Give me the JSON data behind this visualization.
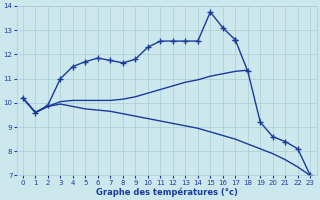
{
  "title": "Graphe des températures (°c)",
  "x_ticks": [
    0,
    1,
    2,
    3,
    4,
    5,
    6,
    7,
    8,
    9,
    10,
    11,
    12,
    13,
    14,
    15,
    16,
    17,
    18,
    19,
    20,
    21,
    22,
    23
  ],
  "ylim": [
    7,
    14
  ],
  "yticks": [
    7,
    8,
    9,
    10,
    11,
    12,
    13,
    14
  ],
  "background_color": "#cce8ed",
  "grid_color": "#aaccd6",
  "line_color": "#1a3a9c",
  "series": [
    {
      "x": [
        0,
        1,
        2,
        3,
        4,
        5,
        6,
        7,
        8,
        9,
        10,
        11,
        12,
        13,
        14,
        15,
        16,
        17
      ],
      "y": [
        10.2,
        9.6,
        9.9,
        11.0,
        11.5,
        11.7,
        11.85,
        11.75,
        11.65,
        11.8,
        12.3,
        12.55,
        12.55,
        12.55,
        12.55,
        13.75,
        13.1,
        12.6
      ],
      "marker": "+",
      "markersize": 4,
      "linewidth": 1.0
    },
    {
      "x": [
        17,
        18,
        19,
        20,
        21,
        22,
        23
      ],
      "y": [
        12.6,
        11.3,
        9.2,
        8.6,
        8.4,
        8.1,
        7.0
      ],
      "marker": "+",
      "markersize": 4,
      "linewidth": 1.0
    },
    {
      "x": [
        0,
        1,
        2,
        3,
        4,
        5,
        6,
        7,
        8,
        9,
        10,
        11,
        12,
        13,
        14,
        15,
        16,
        17,
        18,
        19,
        20,
        21,
        22,
        23
      ],
      "y": [
        10.2,
        9.6,
        9.85,
        9.95,
        9.85,
        9.75,
        9.7,
        9.65,
        9.55,
        9.45,
        9.35,
        9.25,
        9.15,
        9.05,
        8.95,
        8.8,
        8.65,
        8.5,
        8.3,
        8.1,
        7.9,
        7.65,
        7.35,
        7.0
      ],
      "marker": null,
      "markersize": 0,
      "linewidth": 1.0
    },
    {
      "x": [
        0,
        1,
        2,
        3,
        4,
        5,
        6,
        7,
        8,
        9,
        10,
        11,
        12,
        13,
        14,
        15,
        16,
        17,
        18
      ],
      "y": [
        10.2,
        9.6,
        9.85,
        10.05,
        10.1,
        10.1,
        10.1,
        10.1,
        10.15,
        10.25,
        10.4,
        10.55,
        10.7,
        10.85,
        10.95,
        11.1,
        11.2,
        11.3,
        11.35
      ],
      "marker": null,
      "markersize": 0,
      "linewidth": 1.0
    }
  ]
}
